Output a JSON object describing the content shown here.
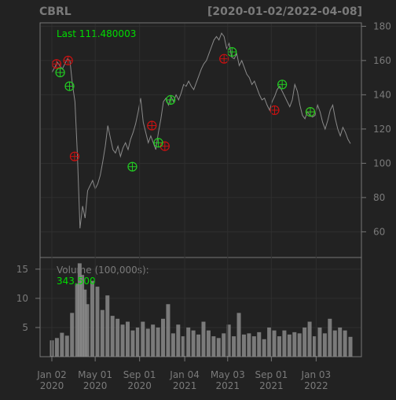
{
  "header": {
    "symbol": "CBRL",
    "date_range": "[2020-01-02/2022-04-08]"
  },
  "colors": {
    "background": "#222222",
    "panel_border": "#777777",
    "grid": "#2f2f2f",
    "price_line": "#8a8a8a",
    "label_text": "#7a7a7a",
    "highlight_text": "#00dd00",
    "buy_marker": "#22cc22",
    "sell_marker": "#cc1111"
  },
  "chart_data": [
    {
      "type": "line",
      "name": "price",
      "label": "Last 111.480003",
      "ylim": [
        45,
        182
      ],
      "y_ticks": [
        60,
        80,
        100,
        120,
        140,
        160,
        180
      ],
      "x_tick_labels": [
        {
          "month": "Jan 02",
          "year": "2020",
          "date": "2020-01-02"
        },
        {
          "month": "May 01",
          "year": "2020",
          "date": "2020-05-01"
        },
        {
          "month": "Sep 01",
          "year": "2020",
          "date": "2020-09-01"
        },
        {
          "month": "Jan 04",
          "year": "2021",
          "date": "2021-01-04"
        },
        {
          "month": "May 03",
          "year": "2021",
          "date": "2021-05-03"
        },
        {
          "month": "Sep 01",
          "year": "2021",
          "date": "2021-09-01"
        },
        {
          "month": "Jan 03",
          "year": "2022",
          "date": "2022-01-03"
        }
      ],
      "points": [
        [
          "2020-01-02",
          153
        ],
        [
          "2020-01-10",
          156
        ],
        [
          "2020-01-17",
          159
        ],
        [
          "2020-01-24",
          157
        ],
        [
          "2020-01-31",
          155
        ],
        [
          "2020-02-07",
          158
        ],
        [
          "2020-02-14",
          161
        ],
        [
          "2020-02-21",
          160
        ],
        [
          "2020-02-28",
          146
        ],
        [
          "2020-03-06",
          136
        ],
        [
          "2020-03-13",
          104
        ],
        [
          "2020-03-20",
          62
        ],
        [
          "2020-03-27",
          75
        ],
        [
          "2020-04-03",
          68
        ],
        [
          "2020-04-10",
          84
        ],
        [
          "2020-04-17",
          87
        ],
        [
          "2020-04-24",
          90
        ],
        [
          "2020-05-01",
          85
        ],
        [
          "2020-05-08",
          88
        ],
        [
          "2020-05-15",
          93
        ],
        [
          "2020-05-22",
          101
        ],
        [
          "2020-05-29",
          110
        ],
        [
          "2020-06-05",
          122
        ],
        [
          "2020-06-12",
          115
        ],
        [
          "2020-06-19",
          108
        ],
        [
          "2020-06-26",
          106
        ],
        [
          "2020-07-03",
          110
        ],
        [
          "2020-07-10",
          104
        ],
        [
          "2020-07-17",
          109
        ],
        [
          "2020-07-24",
          112
        ],
        [
          "2020-07-31",
          108
        ],
        [
          "2020-08-07",
          114
        ],
        [
          "2020-08-14",
          118
        ],
        [
          "2020-08-21",
          123
        ],
        [
          "2020-08-28",
          130
        ],
        [
          "2020-09-04",
          138
        ],
        [
          "2020-09-11",
          124
        ],
        [
          "2020-09-18",
          118
        ],
        [
          "2020-09-25",
          112
        ],
        [
          "2020-10-02",
          116
        ],
        [
          "2020-10-09",
          112
        ],
        [
          "2020-10-16",
          108
        ],
        [
          "2020-10-23",
          118
        ],
        [
          "2020-10-30",
          126
        ],
        [
          "2020-11-06",
          136
        ],
        [
          "2020-11-13",
          138
        ],
        [
          "2020-11-20",
          134
        ],
        [
          "2020-11-27",
          139
        ],
        [
          "2020-12-04",
          136
        ],
        [
          "2020-12-11",
          140
        ],
        [
          "2020-12-18",
          137
        ],
        [
          "2020-12-25",
          141
        ],
        [
          "2021-01-01",
          146
        ],
        [
          "2021-01-08",
          145
        ],
        [
          "2021-01-15",
          148
        ],
        [
          "2021-01-22",
          145
        ],
        [
          "2021-01-29",
          143
        ],
        [
          "2021-02-05",
          147
        ],
        [
          "2021-02-12",
          151
        ],
        [
          "2021-02-19",
          155
        ],
        [
          "2021-02-26",
          158
        ],
        [
          "2021-03-05",
          160
        ],
        [
          "2021-03-12",
          164
        ],
        [
          "2021-03-19",
          168
        ],
        [
          "2021-03-26",
          172
        ],
        [
          "2021-04-02",
          174
        ],
        [
          "2021-04-09",
          172
        ],
        [
          "2021-04-16",
          176
        ],
        [
          "2021-04-23",
          174
        ],
        [
          "2021-04-30",
          167
        ],
        [
          "2021-05-07",
          170
        ],
        [
          "2021-05-14",
          162
        ],
        [
          "2021-05-21",
          161
        ],
        [
          "2021-05-28",
          164
        ],
        [
          "2021-06-04",
          157
        ],
        [
          "2021-06-11",
          160
        ],
        [
          "2021-06-18",
          156
        ],
        [
          "2021-06-25",
          152
        ],
        [
          "2021-07-02",
          150
        ],
        [
          "2021-07-09",
          146
        ],
        [
          "2021-07-16",
          148
        ],
        [
          "2021-07-23",
          144
        ],
        [
          "2021-07-30",
          140
        ],
        [
          "2021-08-06",
          137
        ],
        [
          "2021-08-13",
          138
        ],
        [
          "2021-08-20",
          134
        ],
        [
          "2021-08-27",
          131
        ],
        [
          "2021-09-03",
          136
        ],
        [
          "2021-09-10",
          139
        ],
        [
          "2021-09-17",
          143
        ],
        [
          "2021-09-24",
          145
        ],
        [
          "2021-10-01",
          142
        ],
        [
          "2021-10-08",
          139
        ],
        [
          "2021-10-15",
          136
        ],
        [
          "2021-10-22",
          133
        ],
        [
          "2021-10-29",
          137
        ],
        [
          "2021-11-05",
          146
        ],
        [
          "2021-11-12",
          142
        ],
        [
          "2021-11-19",
          134
        ],
        [
          "2021-11-26",
          128
        ],
        [
          "2021-12-03",
          126
        ],
        [
          "2021-12-10",
          130
        ],
        [
          "2021-12-17",
          128
        ],
        [
          "2021-12-24",
          127
        ],
        [
          "2021-12-31",
          128
        ],
        [
          "2022-01-07",
          134
        ],
        [
          "2022-01-14",
          130
        ],
        [
          "2022-01-21",
          124
        ],
        [
          "2022-01-28",
          120
        ],
        [
          "2022-02-04",
          125
        ],
        [
          "2022-02-11",
          131
        ],
        [
          "2022-02-18",
          134
        ],
        [
          "2022-02-25",
          126
        ],
        [
          "2022-03-04",
          120
        ],
        [
          "2022-03-11",
          116
        ],
        [
          "2022-03-18",
          121
        ],
        [
          "2022-03-25",
          118
        ],
        [
          "2022-04-01",
          114
        ],
        [
          "2022-04-08",
          111.48
        ]
      ],
      "buy_signals": [
        [
          "2020-01-25",
          153
        ],
        [
          "2020-02-20",
          145
        ],
        [
          "2020-08-12",
          98
        ],
        [
          "2020-10-23",
          112
        ],
        [
          "2020-11-26",
          137
        ],
        [
          "2021-05-15",
          165
        ],
        [
          "2021-10-01",
          146
        ],
        [
          "2021-12-18",
          130
        ]
      ],
      "sell_signals": [
        [
          "2020-01-15",
          158
        ],
        [
          "2020-02-16",
          160
        ],
        [
          "2020-03-05",
          104
        ],
        [
          "2020-10-05",
          122
        ],
        [
          "2020-11-10",
          110
        ],
        [
          "2021-04-23",
          161
        ],
        [
          "2021-09-10",
          131
        ],
        [
          "2021-12-18",
          130
        ]
      ]
    },
    {
      "type": "bar",
      "name": "volume",
      "label": "Volume (100,000s):",
      "last_value": "343,500",
      "ylim": [
        0,
        17
      ],
      "y_ticks": [
        5,
        10,
        15
      ],
      "bars": [
        [
          "2020-01-02",
          2.8
        ],
        [
          "2020-01-16",
          3.2
        ],
        [
          "2020-01-30",
          4.1
        ],
        [
          "2020-02-13",
          3.6
        ],
        [
          "2020-02-27",
          7.5
        ],
        [
          "2020-03-12",
          12.5
        ],
        [
          "2020-03-19",
          16.0
        ],
        [
          "2020-03-26",
          14.0
        ],
        [
          "2020-04-02",
          11.5
        ],
        [
          "2020-04-09",
          9.0
        ],
        [
          "2020-04-23",
          13.0
        ],
        [
          "2020-05-07",
          12.0
        ],
        [
          "2020-05-21",
          8.0
        ],
        [
          "2020-06-04",
          10.5
        ],
        [
          "2020-06-18",
          7.0
        ],
        [
          "2020-07-02",
          6.5
        ],
        [
          "2020-07-16",
          5.5
        ],
        [
          "2020-07-30",
          6.0
        ],
        [
          "2020-08-13",
          4.5
        ],
        [
          "2020-08-27",
          5.0
        ],
        [
          "2020-09-10",
          6.0
        ],
        [
          "2020-09-24",
          4.8
        ],
        [
          "2020-10-08",
          5.5
        ],
        [
          "2020-10-22",
          5.0
        ],
        [
          "2020-11-05",
          6.5
        ],
        [
          "2020-11-19",
          9.0
        ],
        [
          "2020-12-03",
          4.0
        ],
        [
          "2020-12-17",
          5.5
        ],
        [
          "2020-12-31",
          3.5
        ],
        [
          "2021-01-14",
          5.0
        ],
        [
          "2021-01-28",
          4.5
        ],
        [
          "2021-02-11",
          3.8
        ],
        [
          "2021-02-25",
          6.0
        ],
        [
          "2021-03-11",
          4.5
        ],
        [
          "2021-03-25",
          3.5
        ],
        [
          "2021-04-08",
          3.2
        ],
        [
          "2021-04-22",
          4.0
        ],
        [
          "2021-05-06",
          5.5
        ],
        [
          "2021-05-20",
          3.5
        ],
        [
          "2021-06-03",
          7.5
        ],
        [
          "2021-06-17",
          3.8
        ],
        [
          "2021-07-01",
          4.0
        ],
        [
          "2021-07-15",
          3.5
        ],
        [
          "2021-07-29",
          4.2
        ],
        [
          "2021-08-12",
          3.0
        ],
        [
          "2021-08-26",
          5.0
        ],
        [
          "2021-09-09",
          4.5
        ],
        [
          "2021-09-23",
          3.5
        ],
        [
          "2021-10-07",
          4.5
        ],
        [
          "2021-10-21",
          3.8
        ],
        [
          "2021-11-04",
          4.2
        ],
        [
          "2021-11-18",
          4.0
        ],
        [
          "2021-12-02",
          5.0
        ],
        [
          "2021-12-16",
          6.0
        ],
        [
          "2021-12-30",
          3.5
        ],
        [
          "2022-01-13",
          5.0
        ],
        [
          "2022-01-27",
          4.0
        ],
        [
          "2022-02-10",
          6.5
        ],
        [
          "2022-02-24",
          4.5
        ],
        [
          "2022-03-10",
          5.0
        ],
        [
          "2022-03-24",
          4.5
        ],
        [
          "2022-04-08",
          3.4
        ]
      ]
    }
  ]
}
